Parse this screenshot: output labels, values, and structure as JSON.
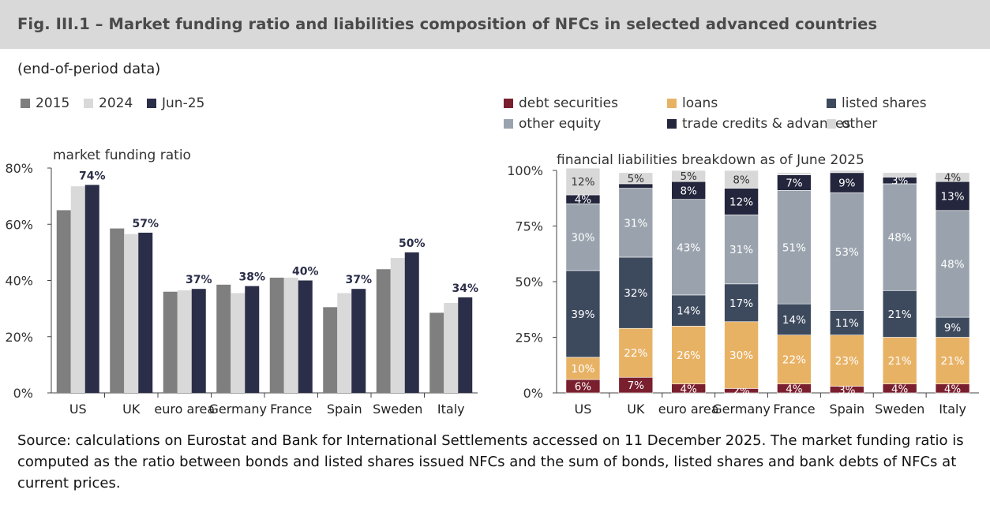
{
  "header": {
    "title": "Fig. III.1 – Market funding ratio and liabilities composition of NFCs in selected advanced countries"
  },
  "subtitle": "(end-of-period data)",
  "footer": {
    "source": "Source: calculations on Eurostat and Bank for International Settlements accessed on 11 December 2025. The market funding ratio is computed as the ratio between bonds and listed shares issued NFCs and the sum of bonds, listed shares and bank debts of NFCs at current prices."
  },
  "colors": {
    "s2015": "#7f7f7f",
    "s2024": "#d9d9d9",
    "jun25": "#2a2e48",
    "debt_securities": "#7a1f2e",
    "loans": "#e8b265",
    "listed_shares": "#3d4a5e",
    "other_equity": "#9aa3ad",
    "trade_credits": "#23263c",
    "other": "#d8d8d8"
  },
  "chart_data": [
    {
      "type": "bar",
      "title": "market funding ratio",
      "categories": [
        "US",
        "UK",
        "euro area",
        "Germany",
        "France",
        "Spain",
        "Sweden",
        "Italy"
      ],
      "series": [
        {
          "name": "2015",
          "values": [
            65,
            58.5,
            36,
            38.5,
            41,
            30.5,
            44,
            28.5
          ]
        },
        {
          "name": "2024",
          "values": [
            73.5,
            56.5,
            36.5,
            35.5,
            41,
            35.5,
            48,
            32
          ]
        },
        {
          "name": "Jun-25",
          "values": [
            74,
            57,
            37,
            38,
            40,
            37,
            50,
            34
          ]
        }
      ],
      "data_labels": [
        "74%",
        "57%",
        "37%",
        "38%",
        "40%",
        "37%",
        "50%",
        "34%"
      ],
      "yticks": [
        "0%",
        "20%",
        "40%",
        "60%",
        "80%"
      ],
      "ylim": [
        0,
        80
      ],
      "legend_position": "top-left",
      "grid": false
    },
    {
      "type": "bar",
      "stacked": true,
      "title": "financial liabilities breakdown as of June 2025",
      "categories": [
        "US",
        "UK",
        "euro area",
        "Germany",
        "France",
        "Spain",
        "Sweden",
        "Italy"
      ],
      "series": [
        {
          "name": "debt securities",
          "values": [
            6,
            7,
            4,
            2,
            4,
            3,
            4,
            4
          ],
          "labels": [
            "6%",
            "7%",
            "4%",
            "2%",
            "4%",
            "3%",
            "4%",
            "4%"
          ]
        },
        {
          "name": "loans",
          "values": [
            10,
            22,
            26,
            30,
            22,
            23,
            21,
            21
          ],
          "labels": [
            "10%",
            "22%",
            "26%",
            "30%",
            "22%",
            "23%",
            "21%",
            "21%"
          ]
        },
        {
          "name": "listed shares",
          "values": [
            39,
            32,
            14,
            17,
            14,
            11,
            21,
            9
          ],
          "labels": [
            "39%",
            "32%",
            "14%",
            "17%",
            "14%",
            "11%",
            "21%",
            "9%"
          ]
        },
        {
          "name": "other equity",
          "values": [
            30,
            31,
            43,
            31,
            51,
            53,
            48,
            48
          ],
          "labels": [
            "30%",
            "31%",
            "43%",
            "31%",
            "51%",
            "53%",
            "48%",
            "48%"
          ]
        },
        {
          "name": "trade credits & advances",
          "values": [
            4,
            2,
            8,
            12,
            7,
            9,
            3,
            13
          ],
          "labels": [
            "4%",
            "",
            "8%",
            "12%",
            "7%",
            "9%",
            "3%",
            "13%"
          ]
        },
        {
          "name": "other",
          "values": [
            12,
            5,
            5,
            8,
            1,
            1,
            2,
            4
          ],
          "labels": [
            "12%",
            "5%",
            "5%",
            "8%",
            "",
            "",
            "",
            "4%"
          ]
        }
      ],
      "yticks": [
        "0%",
        "25%",
        "50%",
        "75%",
        "100%"
      ],
      "ylim": [
        0,
        100
      ],
      "legend_position": "top",
      "grid": false
    }
  ]
}
